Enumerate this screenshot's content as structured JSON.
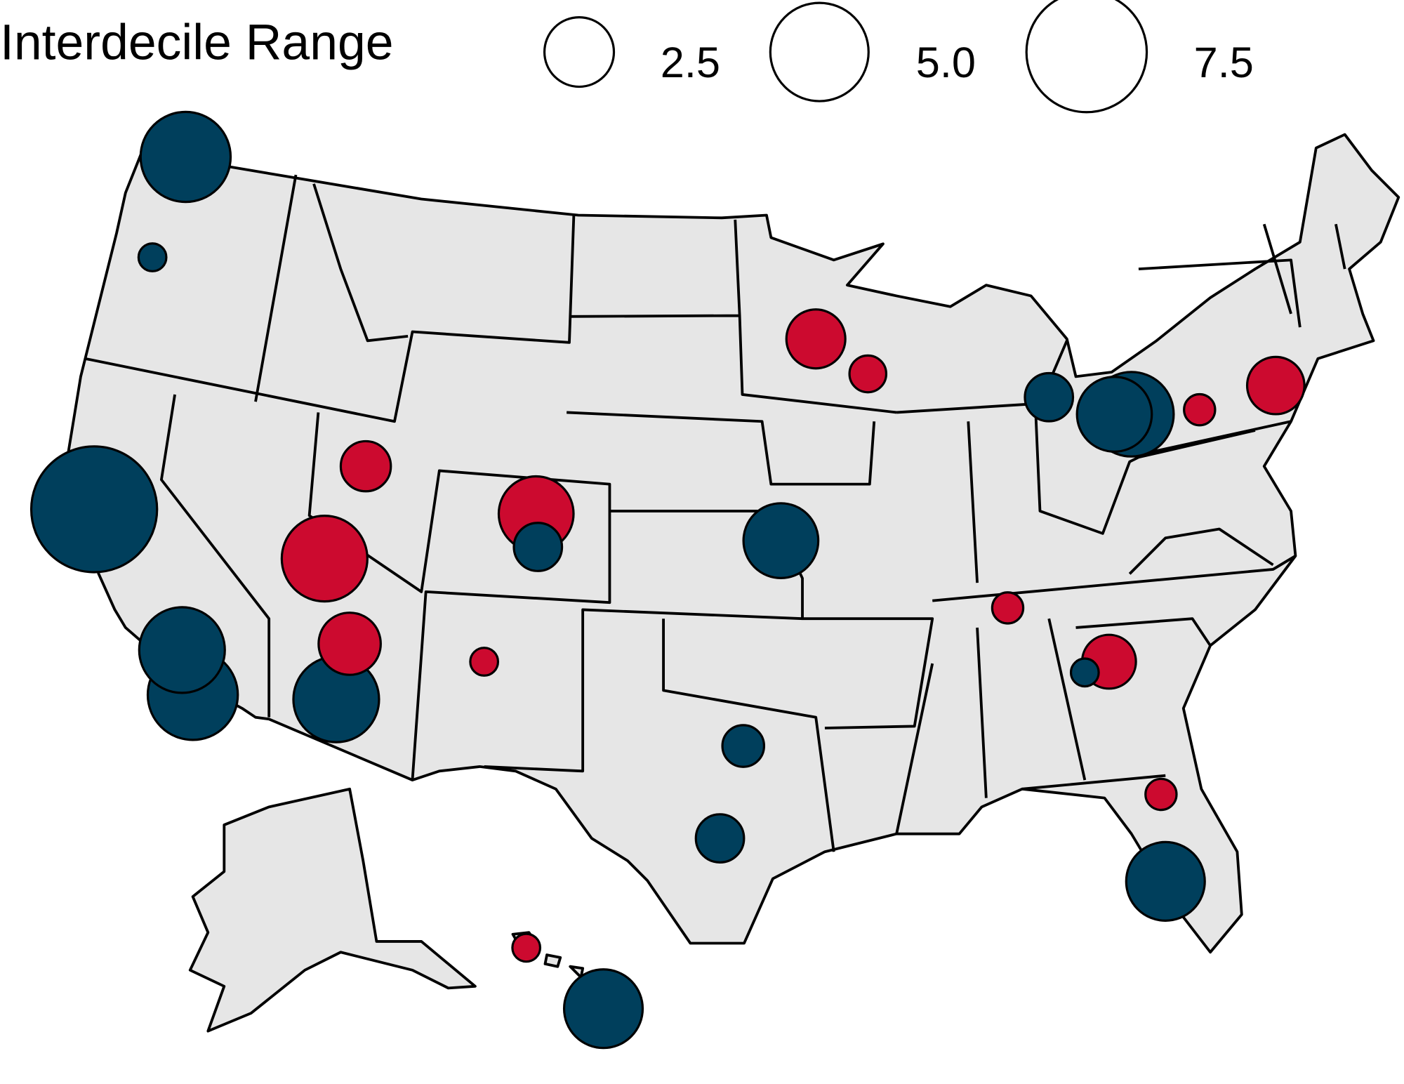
{
  "chart_data": {
    "type": "bubble-map",
    "legend_title": "Interdecile Range",
    "size_breaks": [
      2.5,
      {
        "value": 5,
        "label": "5.0"
      },
      7.5
    ],
    "series": [
      {
        "color": "#003f5c",
        "values": [
          4.2,
          0.4,
          8.2,
          3.8,
          4.2,
          3.8,
          1.2,
          2.9,
          0.9,
          1.2,
          3.2,
          3.2,
          1.2,
          2.9,
          3.7,
          0.4
        ]
      },
      {
        "color": "#cc0a2f",
        "values": [
          1.8,
          0.7,
          1.3,
          3.8,
          2.9,
          2.0,
          0.4,
          0.5,
          1.5,
          1.7,
          0.5,
          0.5,
          0.4
        ]
      }
    ]
  }
}
